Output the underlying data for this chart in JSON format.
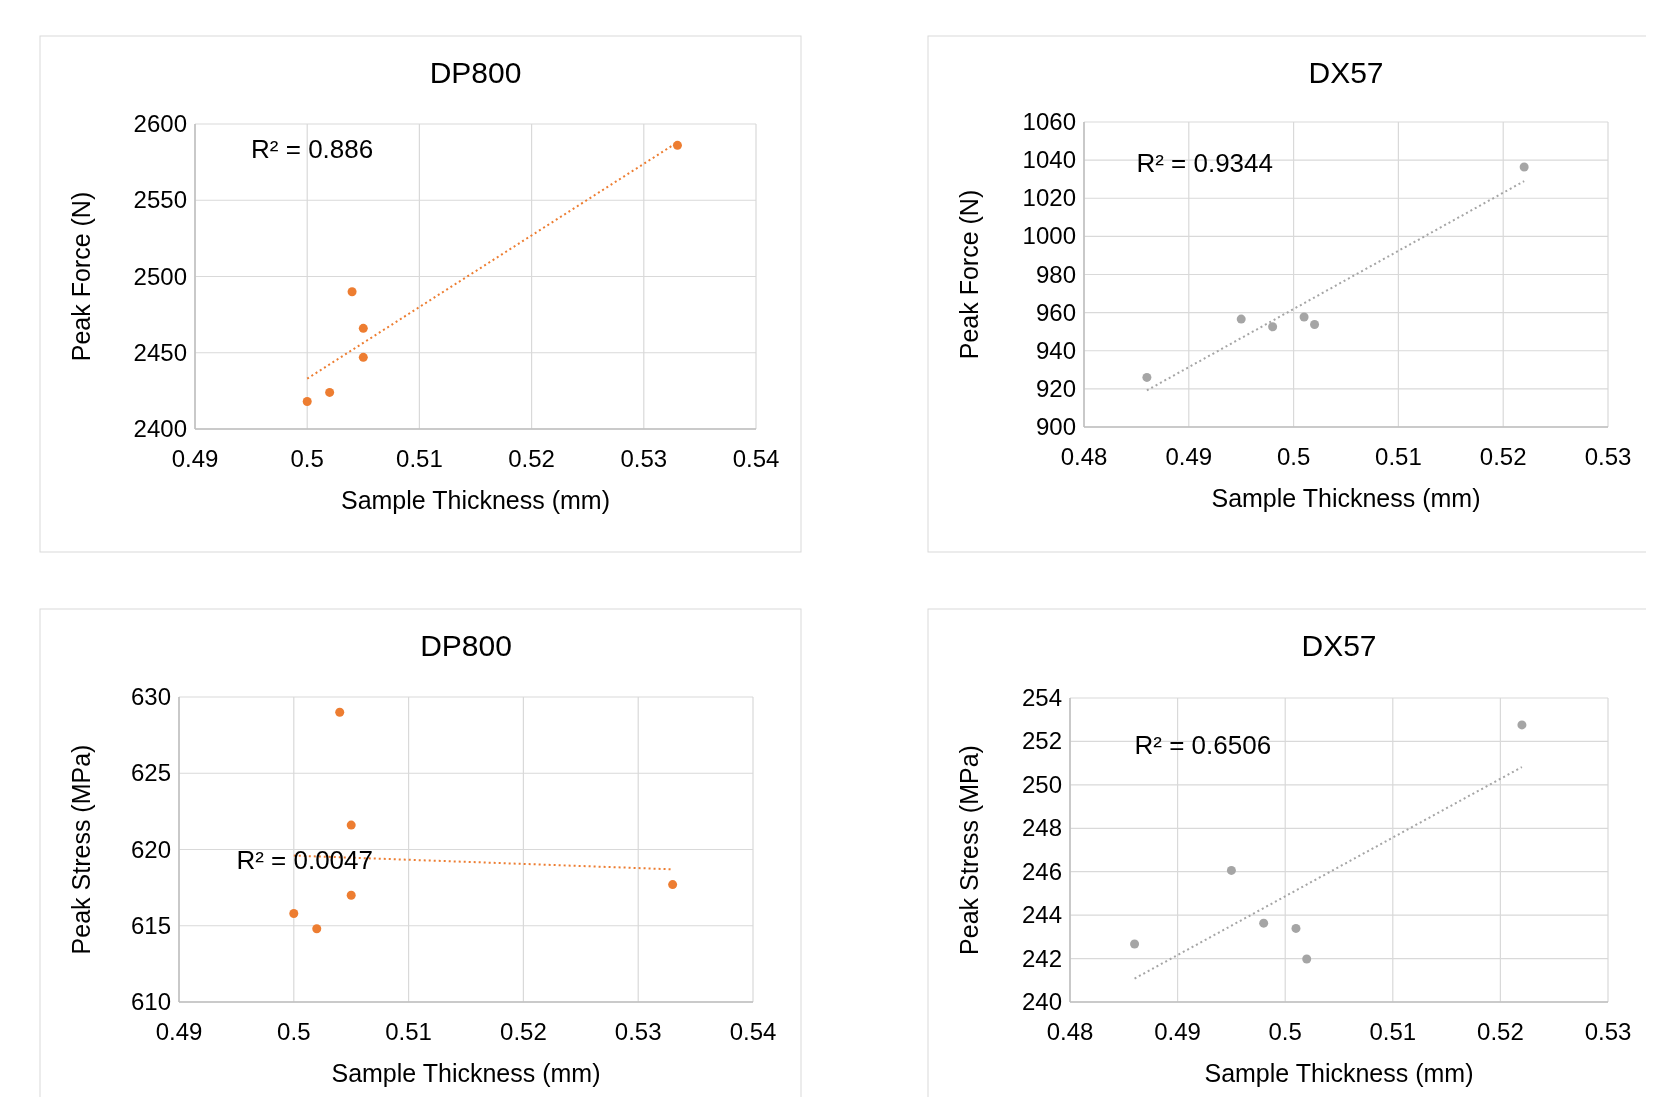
{
  "chart_data": [
    {
      "type": "scatter",
      "title": "DP800",
      "xlabel": "Sample Thickness (mm)",
      "ylabel": "Peak Force (N)",
      "xlim": [
        0.49,
        0.54
      ],
      "xticks": [
        0.49,
        0.5,
        0.51,
        0.52,
        0.53,
        0.54
      ],
      "ylim": [
        2400,
        2600
      ],
      "yticks": [
        2400,
        2450,
        2500,
        2550,
        2600
      ],
      "grid": true,
      "marker": "circle",
      "annotations": [
        "R² = 0.886"
      ],
      "series": [
        {
          "type": "scatter",
          "color": "#ed7d31",
          "x": [
            0.5,
            0.502,
            0.504,
            0.505,
            0.505,
            0.533
          ],
          "values": [
            2418,
            2424,
            2490,
            2466,
            2447,
            2586
          ]
        },
        {
          "type": "line",
          "color": "#ed7d31",
          "marker": "none",
          "line_style": "dotted",
          "x": [
            0.5,
            0.533
          ],
          "values": [
            2433,
            2588
          ]
        }
      ]
    },
    {
      "type": "scatter",
      "title": "DX57",
      "xlabel": "Sample Thickness (mm)",
      "ylabel": "Peak Force (N)",
      "xlim": [
        0.48,
        0.53
      ],
      "xticks": [
        0.48,
        0.49,
        0.5,
        0.51,
        0.52,
        0.53
      ],
      "ylim": [
        900,
        1060
      ],
      "yticks": [
        900,
        920,
        940,
        960,
        980,
        1000,
        1020,
        1040,
        1060
      ],
      "grid": true,
      "marker": "circle",
      "annotations": [
        "R² = 0.9344"
      ],
      "series": [
        {
          "type": "scatter",
          "color": "#a5a5a5",
          "x": [
            0.486,
            0.495,
            0.498,
            0.501,
            0.502,
            0.522
          ],
          "values": [
            926,
            956.6,
            952.6,
            957.7,
            953.8,
            1036.4
          ]
        },
        {
          "type": "line",
          "color": "#a5a5a5",
          "marker": "none",
          "line_style": "dotted",
          "x": [
            0.486,
            0.522
          ],
          "values": [
            919.2,
            1029
          ]
        }
      ]
    },
    {
      "type": "scatter",
      "title": "DP800",
      "xlabel": "Sample Thickness (mm)",
      "ylabel": "Peak Stress (MPa)",
      "xlim": [
        0.49,
        0.54
      ],
      "xticks": [
        0.49,
        0.5,
        0.51,
        0.52,
        0.53,
        0.54
      ],
      "ylim": [
        610,
        630
      ],
      "yticks": [
        610,
        615,
        620,
        625,
        630
      ],
      "grid": true,
      "marker": "circle",
      "annotations": [
        "R² = 0.0047"
      ],
      "series": [
        {
          "type": "scatter",
          "color": "#ed7d31",
          "x": [
            0.5,
            0.502,
            0.504,
            0.505,
            0.505,
            0.533
          ],
          "values": [
            615.8,
            614.8,
            629.0,
            621.6,
            617.0,
            617.7
          ]
        },
        {
          "type": "line",
          "color": "#ed7d31",
          "marker": "none",
          "line_style": "dotted",
          "x": [
            0.5,
            0.533
          ],
          "values": [
            619.6,
            618.7
          ]
        }
      ]
    },
    {
      "type": "scatter",
      "title": "DX57",
      "xlabel": "Sample Thickness (mm)",
      "ylabel": "Peak Stress (MPa)",
      "xlim": [
        0.48,
        0.53
      ],
      "xticks": [
        0.48,
        0.49,
        0.5,
        0.51,
        0.52,
        0.53
      ],
      "ylim": [
        240,
        254
      ],
      "yticks": [
        240,
        242,
        244,
        246,
        248,
        250,
        252,
        254
      ],
      "grid": true,
      "marker": "circle",
      "annotations": [
        "R² = 0.6506"
      ],
      "series": [
        {
          "type": "scatter",
          "color": "#a5a5a5",
          "x": [
            0.486,
            0.495,
            0.498,
            0.501,
            0.502,
            0.522
          ],
          "values": [
            242.67,
            246.06,
            243.63,
            243.39,
            241.98,
            252.76
          ]
        },
        {
          "type": "line",
          "color": "#a5a5a5",
          "marker": "none",
          "line_style": "dotted",
          "x": [
            0.486,
            0.522
          ],
          "values": [
            241.08,
            250.82
          ]
        }
      ]
    }
  ]
}
